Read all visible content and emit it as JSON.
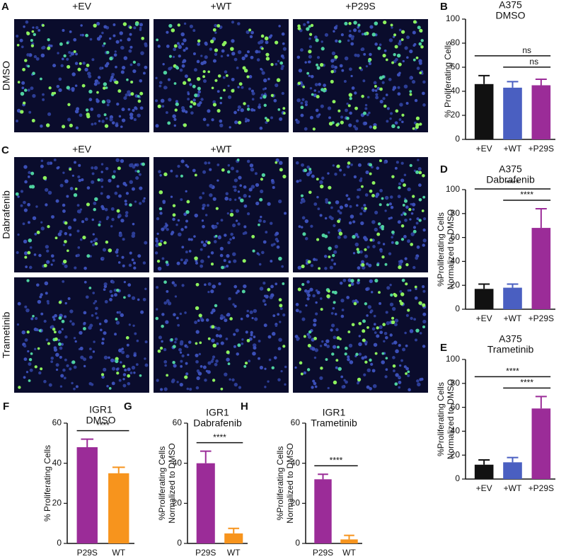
{
  "figure": {
    "panel_a": {
      "letter": "A",
      "columns": [
        "+EV",
        "+WT",
        "+P29S"
      ],
      "rows": [
        "DMSO"
      ]
    },
    "panel_c": {
      "letter": "C",
      "columns": [
        "+EV",
        "+WT",
        "+P29S"
      ],
      "rows": [
        "Dabrafenib",
        "Trametinib"
      ]
    }
  },
  "chart_data": [
    {
      "type": "bar",
      "panel": "B",
      "title": "A375",
      "subtitle": "DMSO",
      "ylabel": [
        "% Proliferating Cells"
      ],
      "categories": [
        "+EV",
        "+WT",
        "+P29S"
      ],
      "values": [
        46,
        43,
        45
      ],
      "errors": [
        7,
        5,
        5
      ],
      "colors": [
        "#111111",
        "#4a5fc1",
        "#9b2c98"
      ],
      "ylim": [
        0,
        100
      ],
      "yticks": [
        0,
        20,
        40,
        60,
        80,
        100
      ],
      "brackets": [
        {
          "from": "+EV",
          "to": "+P29S",
          "label": "ns"
        },
        {
          "from": "+WT",
          "to": "+P29S",
          "label": "ns"
        }
      ]
    },
    {
      "type": "bar",
      "panel": "D",
      "title": "A375",
      "subtitle": "Dabrafenib",
      "ylabel": [
        "%Proliferating Cells",
        "Normalized to DMSO"
      ],
      "categories": [
        "+EV",
        "+WT",
        "+P29S"
      ],
      "values": [
        17,
        18,
        68
      ],
      "errors": [
        4,
        3,
        16
      ],
      "colors": [
        "#111111",
        "#4a5fc1",
        "#9b2c98"
      ],
      "ylim": [
        0,
        100
      ],
      "yticks": [
        0,
        20,
        40,
        60,
        80,
        100
      ],
      "brackets": [
        {
          "from": "+EV",
          "to": "+P29S",
          "label": "****"
        },
        {
          "from": "+WT",
          "to": "+P29S",
          "label": "****"
        }
      ]
    },
    {
      "type": "bar",
      "panel": "E",
      "title": "A375",
      "subtitle": "Trametinib",
      "ylabel": [
        "%Proliferating Cells",
        "Normalized to DMSO"
      ],
      "categories": [
        "+EV",
        "+WT",
        "+P29S"
      ],
      "values": [
        12,
        14,
        59
      ],
      "errors": [
        4,
        4,
        10
      ],
      "colors": [
        "#111111",
        "#4a5fc1",
        "#9b2c98"
      ],
      "ylim": [
        0,
        100
      ],
      "yticks": [
        0,
        20,
        40,
        60,
        80,
        100
      ],
      "brackets": [
        {
          "from": "+EV",
          "to": "+P29S",
          "label": "****"
        },
        {
          "from": "+WT",
          "to": "+P29S",
          "label": "****"
        }
      ]
    },
    {
      "type": "bar",
      "panel": "F",
      "title": "IGR1",
      "subtitle": "DMSO",
      "ylabel": [
        "% Proliferating Cells"
      ],
      "categories": [
        "P29S",
        "WT"
      ],
      "values": [
        48,
        35
      ],
      "errors": [
        4,
        3
      ],
      "colors": [
        "#9b2c98",
        "#f7941d"
      ],
      "ylim": [
        0,
        60
      ],
      "yticks": [
        0,
        20,
        40,
        60
      ],
      "brackets": [
        {
          "from": "P29S",
          "to": "WT",
          "label": "****"
        }
      ]
    },
    {
      "type": "bar",
      "panel": "G",
      "title": "IGR1",
      "subtitle": "Dabrafenib",
      "ylabel": [
        "%Proliferating Cells",
        "Normalized to DMSO"
      ],
      "categories": [
        "P29S",
        "WT"
      ],
      "values": [
        40,
        5
      ],
      "errors": [
        6,
        2.5
      ],
      "colors": [
        "#9b2c98",
        "#f7941d"
      ],
      "ylim": [
        0,
        60
      ],
      "yticks": [
        0,
        20,
        40,
        60
      ],
      "brackets": [
        {
          "from": "P29S",
          "to": "WT",
          "label": "****"
        }
      ]
    },
    {
      "type": "bar",
      "panel": "H",
      "title": "IGR1",
      "subtitle": "Trametinib",
      "ylabel": [
        "%Proliferating Cells",
        "Normalized to DMSO"
      ],
      "categories": [
        "P29S",
        "WT"
      ],
      "values": [
        32,
        2
      ],
      "errors": [
        2.5,
        2
      ],
      "colors": [
        "#9b2c98",
        "#f7941d"
      ],
      "ylim": [
        0,
        60
      ],
      "yticks": [
        0,
        20,
        40,
        60
      ],
      "brackets": [
        {
          "from": "P29S",
          "to": "WT",
          "label": "****"
        }
      ]
    }
  ]
}
